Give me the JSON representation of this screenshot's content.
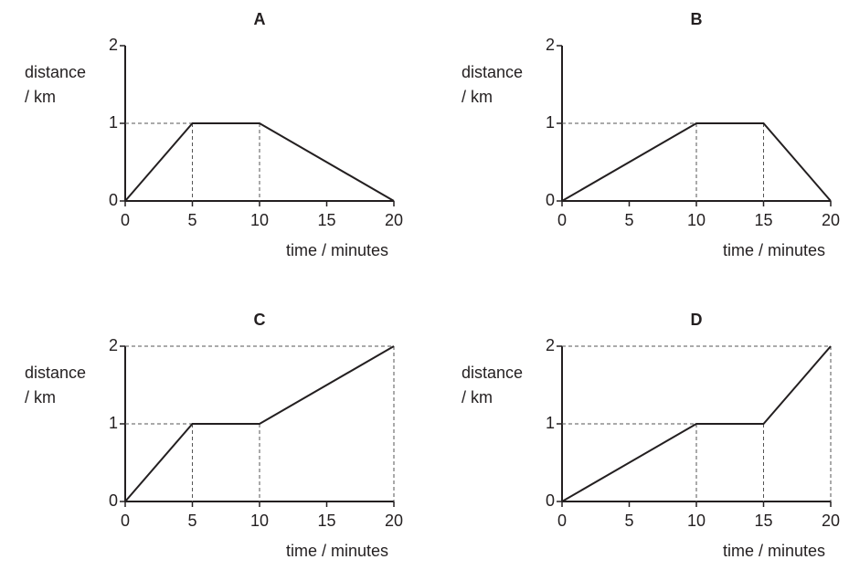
{
  "chart_data": [
    {
      "type": "line",
      "title": "A",
      "y_label": [
        "distance",
        "/ km"
      ],
      "x_label": "time / minutes",
      "x": [
        0,
        5,
        10,
        20
      ],
      "values": [
        0,
        1,
        1,
        0
      ],
      "color": "#231f20",
      "xlim": [
        0,
        20
      ],
      "xticks": [
        0,
        5,
        10,
        15,
        20
      ],
      "ylim": [
        0,
        2
      ],
      "yticks": [
        0,
        1,
        2
      ],
      "drop_lines": true
    },
    {
      "type": "line",
      "title": "B",
      "y_label": [
        "distance",
        "/ km"
      ],
      "x_label": "time / minutes",
      "x": [
        0,
        10,
        15,
        20
      ],
      "values": [
        0,
        1,
        1,
        0
      ],
      "color": "#231f20",
      "xlim": [
        0,
        20
      ],
      "xticks": [
        0,
        5,
        10,
        15,
        20
      ],
      "ylim": [
        0,
        2
      ],
      "yticks": [
        0,
        1,
        2
      ],
      "drop_lines": true
    },
    {
      "type": "line",
      "title": "C",
      "y_label": [
        "distance",
        "/ km"
      ],
      "x_label": "time / minutes",
      "x": [
        0,
        5,
        10,
        20
      ],
      "values": [
        0,
        1,
        1,
        2
      ],
      "color": "#231f20",
      "xlim": [
        0,
        20
      ],
      "xticks": [
        0,
        5,
        10,
        15,
        20
      ],
      "ylim": [
        0,
        2
      ],
      "yticks": [
        0,
        1,
        2
      ],
      "drop_lines": true
    },
    {
      "type": "line",
      "title": "D",
      "y_label": [
        "distance",
        "/ km"
      ],
      "x_label": "time / minutes",
      "x": [
        0,
        10,
        15,
        20
      ],
      "values": [
        0,
        1,
        1,
        2
      ],
      "color": "#231f20",
      "xlim": [
        0,
        20
      ],
      "xticks": [
        0,
        5,
        10,
        15,
        20
      ],
      "ylim": [
        0,
        2
      ],
      "yticks": [
        0,
        1,
        2
      ],
      "drop_lines": true
    }
  ]
}
